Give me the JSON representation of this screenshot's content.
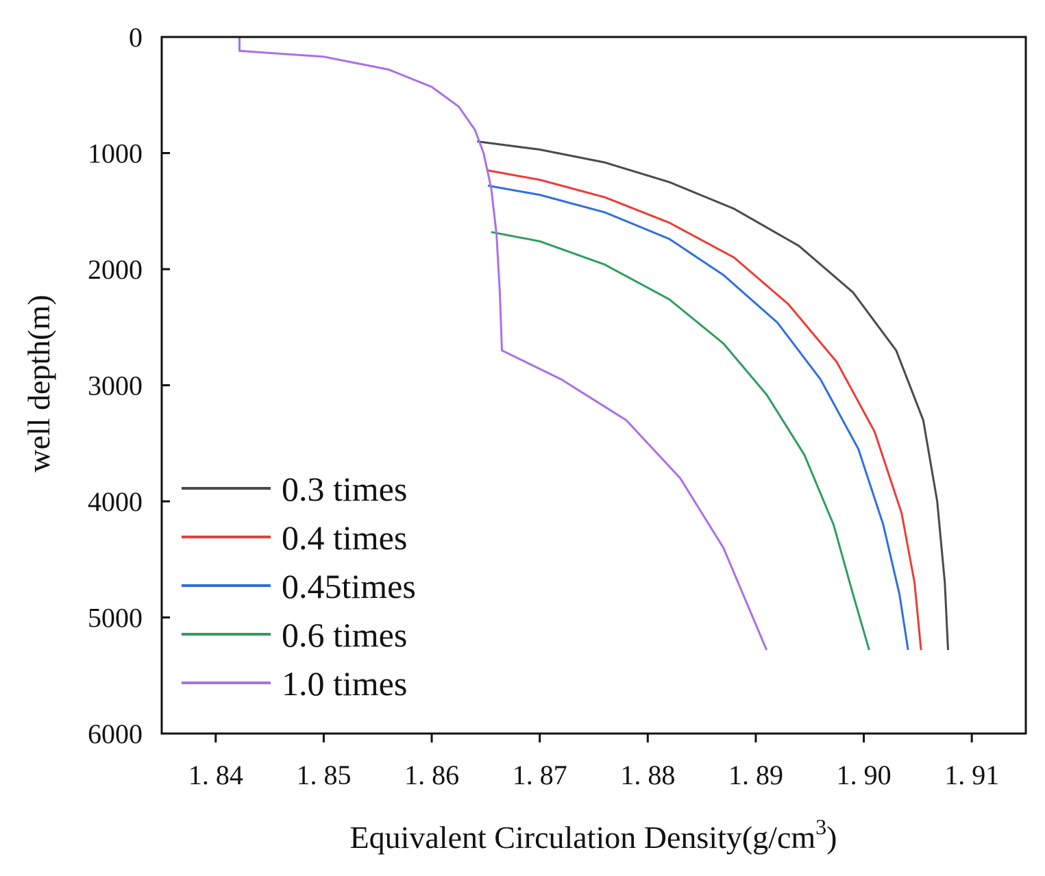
{
  "chart_data": {
    "type": "line",
    "title": "",
    "xlabel": "Equivalent Circulation Density(g/cm",
    "xlabel_superscript": "3",
    "xlabel_suffix": ")",
    "ylabel": "well depth(m)",
    "xlim": [
      1.835,
      1.915
    ],
    "ylim": [
      0,
      6000
    ],
    "y_inverted": true,
    "grid": false,
    "legend_position": "bottom-left",
    "x_ticks": [
      {
        "value": 1.84,
        "label": "1. 84"
      },
      {
        "value": 1.85,
        "label": "1. 85"
      },
      {
        "value": 1.86,
        "label": "1. 86"
      },
      {
        "value": 1.87,
        "label": "1. 87"
      },
      {
        "value": 1.88,
        "label": "1. 88"
      },
      {
        "value": 1.89,
        "label": "1. 89"
      },
      {
        "value": 1.9,
        "label": "1. 90"
      },
      {
        "value": 1.91,
        "label": "1. 91"
      }
    ],
    "y_ticks": [
      {
        "value": 0,
        "label": "0"
      },
      {
        "value": 1000,
        "label": "1000"
      },
      {
        "value": 2000,
        "label": "2000"
      },
      {
        "value": 3000,
        "label": "3000"
      },
      {
        "value": 4000,
        "label": "4000"
      },
      {
        "value": 5000,
        "label": "5000"
      },
      {
        "value": 6000,
        "label": "6000"
      }
    ],
    "series": [
      {
        "name": "0.3 times",
        "color": "#4a4a4a",
        "points": [
          [
            1.8642,
            900
          ],
          [
            1.87,
            970
          ],
          [
            1.876,
            1080
          ],
          [
            1.882,
            1250
          ],
          [
            1.888,
            1480
          ],
          [
            1.894,
            1800
          ],
          [
            1.899,
            2200
          ],
          [
            1.903,
            2700
          ],
          [
            1.9055,
            3300
          ],
          [
            1.9068,
            4000
          ],
          [
            1.9075,
            4700
          ],
          [
            1.9078,
            5280
          ]
        ]
      },
      {
        "name": "0.4 times",
        "color": "#ef3b36",
        "points": [
          [
            1.8652,
            1150
          ],
          [
            1.87,
            1230
          ],
          [
            1.876,
            1380
          ],
          [
            1.882,
            1600
          ],
          [
            1.888,
            1900
          ],
          [
            1.893,
            2300
          ],
          [
            1.8975,
            2800
          ],
          [
            1.901,
            3400
          ],
          [
            1.9035,
            4100
          ],
          [
            1.9047,
            4700
          ],
          [
            1.9053,
            5280
          ]
        ]
      },
      {
        "name": "0.45times",
        "color": "#2f6fe0",
        "points": [
          [
            1.8652,
            1280
          ],
          [
            1.87,
            1360
          ],
          [
            1.876,
            1510
          ],
          [
            1.882,
            1740
          ],
          [
            1.887,
            2050
          ],
          [
            1.892,
            2460
          ],
          [
            1.896,
            2950
          ],
          [
            1.8995,
            3550
          ],
          [
            1.9018,
            4200
          ],
          [
            1.9033,
            4800
          ],
          [
            1.9041,
            5280
          ]
        ]
      },
      {
        "name": "0.6 times",
        "color": "#2e9e5b",
        "points": [
          [
            1.8655,
            1680
          ],
          [
            1.87,
            1760
          ],
          [
            1.876,
            1960
          ],
          [
            1.882,
            2260
          ],
          [
            1.887,
            2640
          ],
          [
            1.891,
            3080
          ],
          [
            1.8945,
            3600
          ],
          [
            1.8972,
            4200
          ],
          [
            1.899,
            4800
          ],
          [
            1.9005,
            5280
          ]
        ]
      },
      {
        "name": "1.0 times",
        "color": "#a870e8",
        "points": [
          [
            1.8422,
            0
          ],
          [
            1.8422,
            120
          ],
          [
            1.85,
            170
          ],
          [
            1.856,
            280
          ],
          [
            1.86,
            430
          ],
          [
            1.8625,
            600
          ],
          [
            1.864,
            800
          ],
          [
            1.8648,
            1000
          ],
          [
            1.8655,
            1300
          ],
          [
            1.866,
            1700
          ],
          [
            1.8663,
            2200
          ],
          [
            1.8665,
            2700
          ],
          [
            1.872,
            2950
          ],
          [
            1.878,
            3300
          ],
          [
            1.883,
            3800
          ],
          [
            1.887,
            4400
          ],
          [
            1.891,
            5280
          ]
        ]
      }
    ]
  }
}
